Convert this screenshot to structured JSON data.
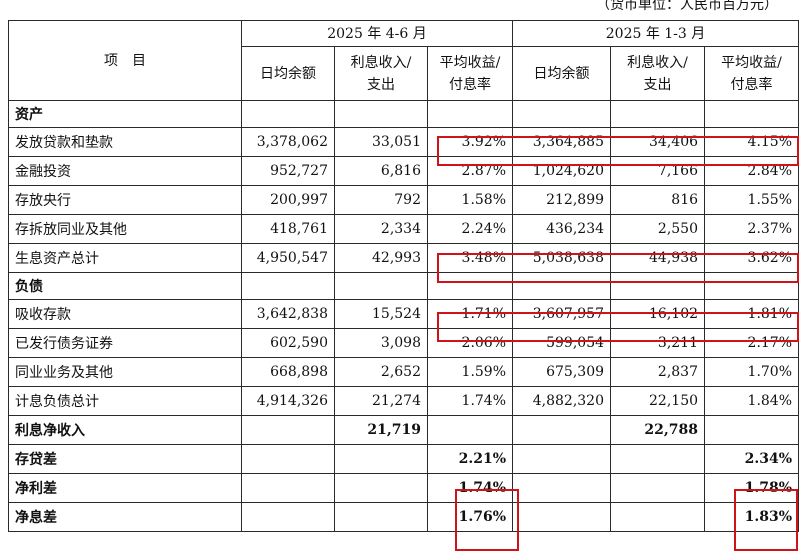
{
  "unit_note": "（货币单位：人民币百万元）",
  "header": {
    "item_label": "项　目",
    "period1": "2025 年 4-6 月",
    "period2": "2025 年 1-3 月",
    "col_avg_balance": "日均余额",
    "col_interest_line1": "利息收入/",
    "col_interest_line2": "支出",
    "col_rate_line1": "平均收益/",
    "col_rate_line2": "付息率"
  },
  "sections": {
    "assets": "资产",
    "liabilities": "负债"
  },
  "asset_rows": [
    {
      "label": "发放贷款和垫款",
      "q2_bal": "3,378,062",
      "q2_int": "33,051",
      "q2_rate": "3.92%",
      "q1_bal": "3,364,885",
      "q1_int": "34,406",
      "q1_rate": "4.15%"
    },
    {
      "label": "金融投资",
      "q2_bal": "952,727",
      "q2_int": "6,816",
      "q2_rate": "2.87%",
      "q1_bal": "1,024,620",
      "q1_int": "7,166",
      "q1_rate": "2.84%"
    },
    {
      "label": "存放央行",
      "q2_bal": "200,997",
      "q2_int": "792",
      "q2_rate": "1.58%",
      "q1_bal": "212,899",
      "q1_int": "816",
      "q1_rate": "1.55%"
    },
    {
      "label": "存拆放同业及其他",
      "q2_bal": "418,761",
      "q2_int": "2,334",
      "q2_rate": "2.24%",
      "q1_bal": "436,234",
      "q1_int": "2,550",
      "q1_rate": "2.37%"
    },
    {
      "label": "生息资产总计",
      "q2_bal": "4,950,547",
      "q2_int": "42,993",
      "q2_rate": "3.48%",
      "q1_bal": "5,038,638",
      "q1_int": "44,938",
      "q1_rate": "3.62%"
    }
  ],
  "liability_rows": [
    {
      "label": "吸收存款",
      "q2_bal": "3,642,838",
      "q2_int": "15,524",
      "q2_rate": "1.71%",
      "q1_bal": "3,607,957",
      "q1_int": "16,102",
      "q1_rate": "1.81%"
    },
    {
      "label": "已发行债务证券",
      "q2_bal": "602,590",
      "q2_int": "3,098",
      "q2_rate": "2.06%",
      "q1_bal": "599,054",
      "q1_int": "3,211",
      "q1_rate": "2.17%"
    },
    {
      "label": "同业业务及其他",
      "q2_bal": "668,898",
      "q2_int": "2,652",
      "q2_rate": "1.59%",
      "q1_bal": "675,309",
      "q1_int": "2,837",
      "q1_rate": "1.70%"
    },
    {
      "label": "计息负债总计",
      "q2_bal": "4,914,326",
      "q2_int": "21,274",
      "q2_rate": "1.74%",
      "q1_bal": "4,882,320",
      "q1_int": "22,150",
      "q1_rate": "1.84%"
    }
  ],
  "summary_rows": [
    {
      "label": "利息净收入",
      "q2_int": "21,719",
      "q2_rate": "",
      "q1_int": "22,788",
      "q1_rate": ""
    },
    {
      "label": "存贷差",
      "q2_int": "",
      "q2_rate": "2.21%",
      "q1_int": "",
      "q1_rate": "2.34%"
    },
    {
      "label": "净利差",
      "q2_int": "",
      "q2_rate": "1.74%",
      "q1_int": "",
      "q1_rate": "1.78%"
    },
    {
      "label": "净息差",
      "q2_int": "",
      "q2_rate": "1.76%",
      "q1_int": "",
      "q1_rate": "1.83%"
    }
  ],
  "highlight_color": "#d0121b"
}
